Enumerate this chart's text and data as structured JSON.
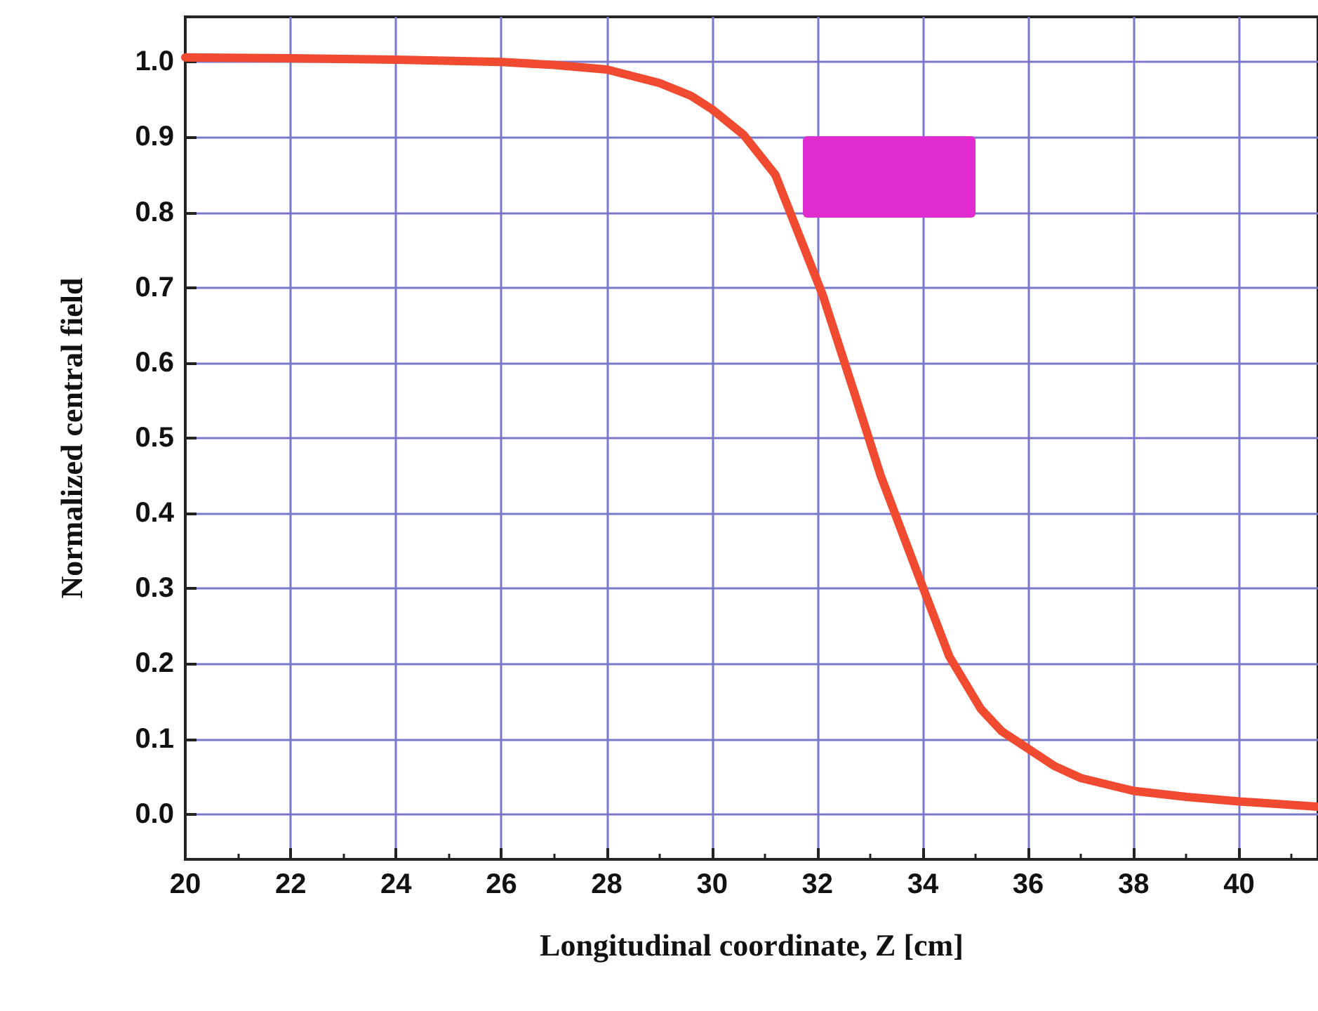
{
  "chart_data": {
    "type": "line",
    "xlabel": "Longitudinal coordinate, Z [cm]",
    "ylabel": "Normalized central field",
    "x": [
      20,
      22,
      24,
      26,
      27,
      28,
      29,
      29.6,
      30,
      30.6,
      31.2,
      31.65,
      32.1,
      32.7,
      33.2,
      33.9,
      34.5,
      35.1,
      35.5,
      36,
      36.5,
      37,
      38,
      39,
      40,
      41.5
    ],
    "series": [
      {
        "color": "#f04a30",
        "values": [
          1.006,
          1.005,
          1.003,
          1.0,
          0.996,
          0.99,
          0.972,
          0.955,
          0.937,
          0.903,
          0.85,
          0.77,
          0.69,
          0.56,
          0.45,
          0.32,
          0.21,
          0.14,
          0.11,
          0.087,
          0.064,
          0.048,
          0.031,
          0.023,
          0.017,
          0.01
        ]
      }
    ],
    "xlim": [
      20,
      41.5
    ],
    "xticks": [
      20,
      22,
      24,
      26,
      28,
      30,
      32,
      34,
      36,
      38,
      40
    ],
    "ylim": [
      -0.06,
      1.06
    ],
    "yticks": [
      {
        "value": 0,
        "label": "0.0"
      },
      0.1,
      0.2,
      0.3,
      0.4,
      0.5,
      0.6,
      0.7,
      0.8,
      0.9,
      {
        "value": 1,
        "label": "1.0"
      }
    ],
    "grid": true,
    "marker": "none",
    "line_style": "solid"
  }
}
